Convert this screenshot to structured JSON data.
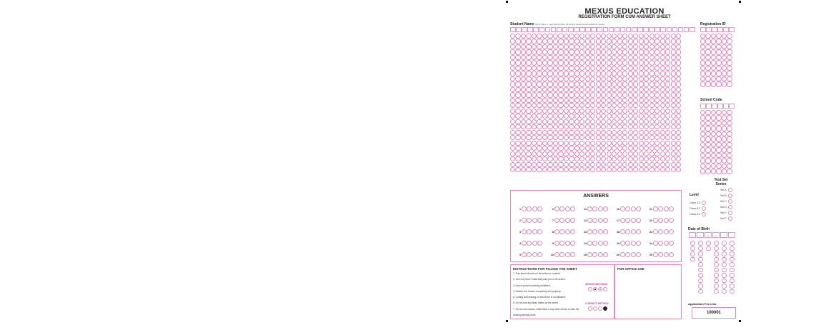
{
  "sheet": {
    "title": "MEXUS EDUCATION",
    "subtitle": "REGISTRATION FORM CUM ANSWER SHEET",
    "student_name_label": "Student Name",
    "student_name_note": "(First Name + Last Name) (Max 30 Chars) Leave column blank for space.",
    "registration_id_label": "Registration ID",
    "school_code_label": "School Code",
    "answers_title": "ANSWERS",
    "answer_numbers": [
      "1",
      "2",
      "3",
      "4",
      "5",
      "6",
      "7",
      "8",
      "9",
      "10",
      "11",
      "12",
      "13",
      "14",
      "15",
      "16",
      "17",
      "18",
      "19",
      "20",
      "21",
      "22",
      "23",
      "24",
      "25"
    ],
    "test_set_label": "Test Set Series",
    "sets": [
      "Set A",
      "Set B",
      "Set C",
      "Set D",
      "Set E",
      "Set F"
    ],
    "level_label": "Level",
    "levels": [
      "Class 4-5",
      "Class 6-7",
      "Class 8-9"
    ],
    "dob_label": "Date of Birth",
    "dob_boxes": [
      "D",
      "D",
      "M",
      "M",
      "Y",
      "Y"
    ],
    "instructions_title": "INSTRUCTIONS FOR FILLING THE SHEET",
    "instructions": [
      "1. This sheet should not be folded or crushed.",
      "2. Use only blue / black ball point pen to fill circles.",
      "3. Use of pencil is strictly prohibited.",
      "4. Darken the Circles completely and properly.",
      "5. Cutting and erasing on this sheet is not allowed.",
      "6. Do not use any stray marks on the sheet.",
      "7. Do not use marker, white fluid or any other device to hide the shading already done."
    ],
    "wrong_methods_label": "WRONG METHODS",
    "correct_method_label": "CORRECT METHOD",
    "office_use_label": "FOR OFFICE USE",
    "app_form_label": "Application Form No.",
    "app_form_no": "100001"
  },
  "colors": {
    "bubble": "#e08ac0",
    "accent": "#d63aa0"
  }
}
